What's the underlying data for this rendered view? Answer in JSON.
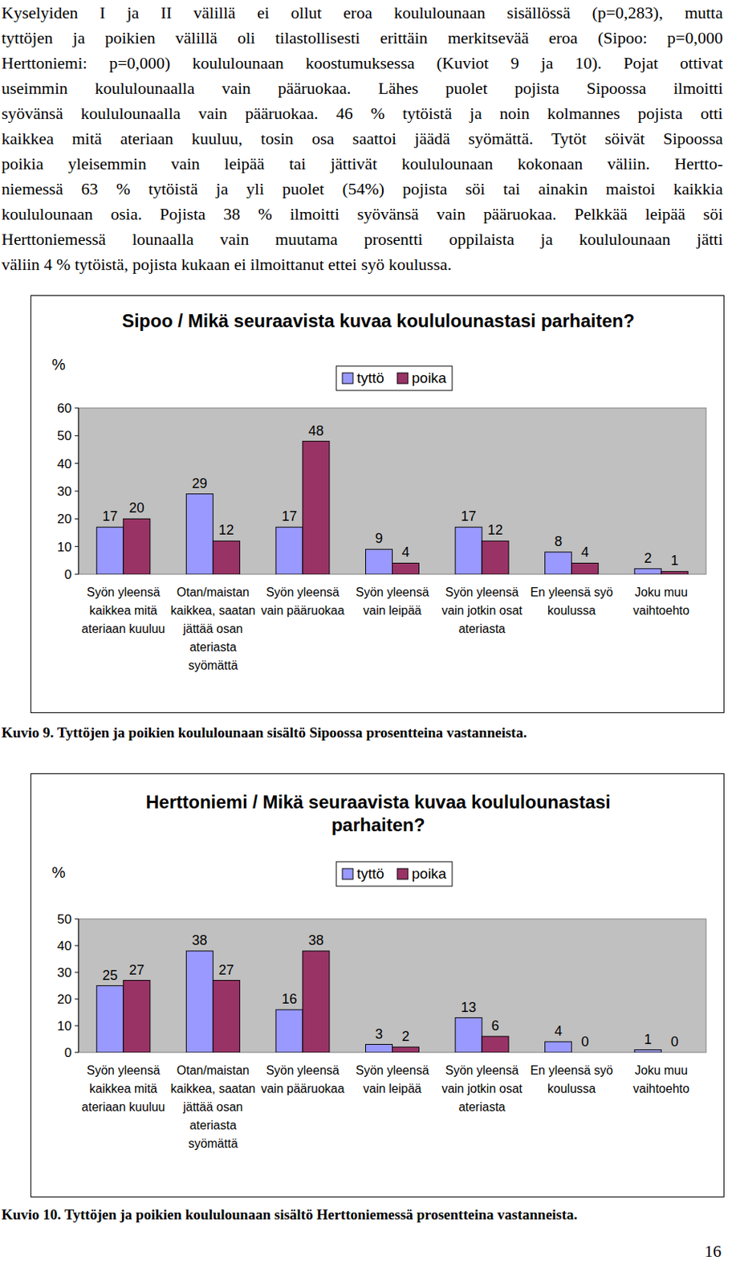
{
  "document": {
    "lines": [
      "Kyselyiden I ja II välillä ei ollut eroa koululounaan sisällössä (p=0,283), mutta",
      "tyttöjen ja poikien välillä oli tilastollisesti erittäin merkitsevää eroa (Sipoo: p=0,000",
      "Herttoniemi: p=0,000) koululounaan koostumuksessa (Kuviot 9 ja 10). Pojat ottivat",
      "useimmin koululounaalla vain pääruokaa. Lähes puolet pojista Sipoossa ilmoitti",
      "syövänsä koululounaalla vain pääruokaa. 46 % tytöistä ja noin kolmannes pojista otti",
      "kaikkea mitä ateriaan kuuluu, tosin osa saattoi jäädä syömättä. Tytöt söivät Sipoossa",
      "poikia yleisemmin vain leipää tai jättivät koululounaan kokonaan väliin. Hertto-",
      "niemessä 63 % tytöistä ja yli puolet (54%) pojista söi tai ainakin maistoi kaikkia",
      "koululounaan osia. Pojista 38 % ilmoitti syövänsä vain pääruokaa. Pelkkää leipää söi",
      "Herttoniemessä lounaalla vain muutama prosentti oppilaista ja koululounaan jätti",
      "väliin 4 % tytöistä, pojista kukaan ei ilmoittanut ettei syö koulussa."
    ],
    "captions": [
      "Kuvio 9. Tyttöjen ja poikien koululounaan sisältö Sipoossa prosentteina vastanneista.",
      "Kuvio 10. Tyttöjen ja poikien koululounaan sisältö Herttoniemessä prosentteina vastanneista."
    ],
    "page_number": "16"
  },
  "chart_data": [
    {
      "type": "bar",
      "title": "Sipoo / Mikä seuraavista kuvaa koululounastasi parhaiten?",
      "y_label": "%",
      "categories": [
        "Syön yleensä kaikkea mitä ateriaan kuuluu",
        "Otan/maistan kaikkea, saatan jättää osan ateriasta syömättä",
        "Syön yleensä vain pääruokaa",
        "Syön yleensä vain leipää",
        "Syön yleensä vain jotkin osat ateriasta",
        "En yleensä syö koulussa",
        "Joku muu vaihtoehto"
      ],
      "series": [
        {
          "name": "tyttö",
          "color": "#9999ff",
          "values": [
            17,
            29,
            17,
            9,
            17,
            8,
            2
          ]
        },
        {
          "name": "poika",
          "color": "#993366",
          "values": [
            20,
            12,
            48,
            4,
            12,
            4,
            1
          ]
        }
      ],
      "ylim": [
        0,
        60
      ],
      "yticks": [
        0,
        10,
        20,
        30,
        40,
        50,
        60
      ],
      "grid": false,
      "legend": "top",
      "data_labels": true
    },
    {
      "type": "bar",
      "title": "Herttoniemi / Mikä seuraavista kuvaa koululounastasi parhaiten?",
      "y_label": "%",
      "categories": [
        "Syön yleensä kaikkea mitä ateriaan kuuluu",
        "Otan/maistan kaikkea, saatan jättää osan ateriasta syömättä",
        "Syön yleensä vain pääruokaa",
        "Syön yleensä vain leipää",
        "Syön yleensä vain jotkin osat ateriasta",
        "En yleensä syö koulussa",
        "Joku muu vaihtoehto"
      ],
      "series": [
        {
          "name": "tyttö",
          "color": "#9999ff",
          "values": [
            25,
            38,
            16,
            3,
            13,
            4,
            1
          ]
        },
        {
          "name": "poika",
          "color": "#993366",
          "values": [
            27,
            27,
            38,
            2,
            6,
            0,
            0
          ]
        }
      ],
      "ylim": [
        0,
        50
      ],
      "yticks": [
        0,
        10,
        20,
        30,
        40,
        50
      ],
      "grid": false,
      "legend": "top",
      "data_labels": true
    }
  ]
}
